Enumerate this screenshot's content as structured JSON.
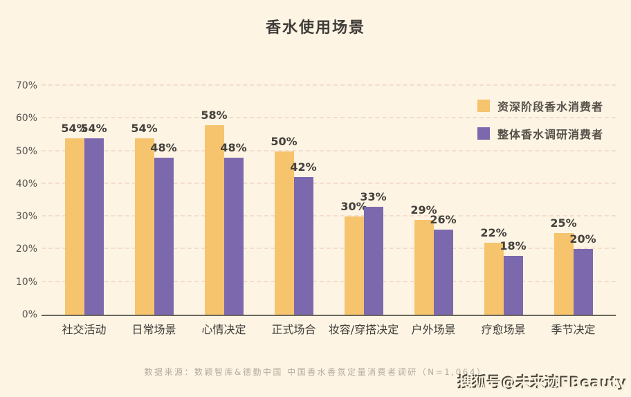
{
  "title": "香水使用场景",
  "legend": {
    "items": [
      {
        "label": "资深阶段香水消费者",
        "color": "#f6c46d"
      },
      {
        "label": "整体香水调研消费者",
        "color": "#7c69ad"
      }
    ]
  },
  "chart_data": {
    "type": "bar",
    "title": "香水使用场景",
    "categories": [
      "社交活动",
      "日常场景",
      "心情决定",
      "正式场合",
      "妆容/穿搭决定",
      "户外场景",
      "疗愈场景",
      "季节决定"
    ],
    "series": [
      {
        "name": "资深阶段香水消费者",
        "color": "#f6c46d",
        "values": [
          54,
          54,
          58,
          50,
          30,
          29,
          22,
          25
        ]
      },
      {
        "name": "整体香水调研消费者",
        "color": "#7c69ad",
        "values": [
          54,
          48,
          48,
          42,
          33,
          26,
          18,
          20
        ]
      }
    ],
    "xlabel": "",
    "ylabel": "",
    "ylim": [
      0,
      70
    ],
    "ytick_step": 10,
    "yticks": [
      "0%",
      "10%",
      "20%",
      "30%",
      "40%",
      "50%",
      "60%",
      "70%"
    ],
    "value_suffix": "%",
    "grid": "horizontal-dashed",
    "legend_position": "top-right"
  },
  "footer": {
    "source": "数据来源：数颖智库&德勤中国  中国香水香氛定量消费者调研（N=1,064）",
    "watermark": "搜狐号@未来迹FBeauty"
  },
  "colors": {
    "background": "#fdf4e4",
    "bar_primary": "#f6c46d",
    "bar_secondary": "#7c69ad",
    "gridline": "#f3ddcb",
    "axis_line": "#6b665c",
    "text_dark": "#3e3c38",
    "text_muted": "#b4aa9d"
  }
}
